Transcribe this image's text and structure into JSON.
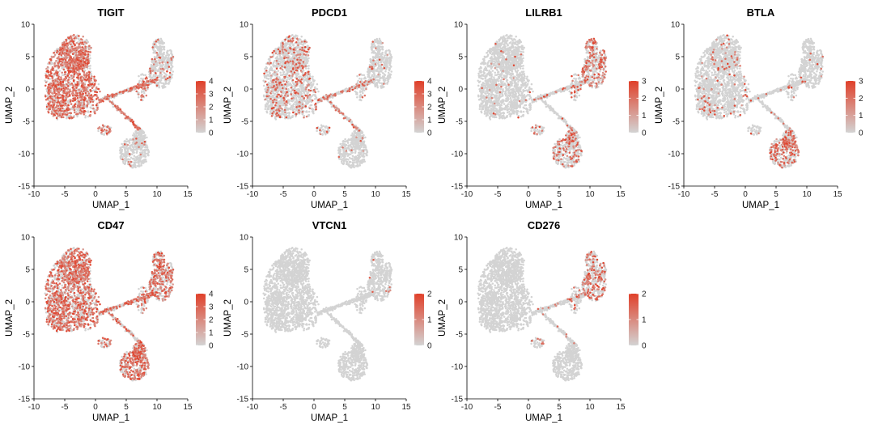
{
  "figure": {
    "xlabel": "UMAP_1",
    "ylabel": "UMAP_2"
  },
  "chart_data": [
    {
      "type": "scatter",
      "title": "TIGIT",
      "xlabel": "UMAP_1",
      "ylabel": "UMAP_2",
      "xlim": [
        -10,
        15
      ],
      "ylim": [
        -15,
        10
      ],
      "xticks": [
        -10,
        -5,
        0,
        5,
        10,
        15
      ],
      "yticks": [
        -15,
        -10,
        -5,
        0,
        5,
        10
      ],
      "colorbar": {
        "min": 0,
        "max": 4,
        "ticks": [
          0,
          1,
          2,
          3,
          4
        ],
        "low_color": "#d3d3d3",
        "high_color": "#e0402a"
      },
      "expression": {
        "main_cluster": 0.6,
        "upper_right_cluster": 0.1,
        "bridge": 0.5,
        "bottom_cluster": 0.05
      }
    },
    {
      "type": "scatter",
      "title": "PDCD1",
      "xlabel": "UMAP_1",
      "ylabel": "UMAP_2",
      "xlim": [
        -10,
        15
      ],
      "ylim": [
        -15,
        10
      ],
      "xticks": [
        -10,
        -5,
        0,
        5,
        10,
        15
      ],
      "yticks": [
        -15,
        -10,
        -5,
        0,
        5,
        10
      ],
      "colorbar": {
        "min": 0,
        "max": 4,
        "ticks": [
          0,
          1,
          2,
          3,
          4
        ],
        "low_color": "#d3d3d3",
        "high_color": "#e0402a"
      },
      "expression": {
        "main_cluster": 0.18,
        "upper_right_cluster": 0.05,
        "bridge": 0.2,
        "bottom_cluster": 0.02
      }
    },
    {
      "type": "scatter",
      "title": "LILRB1",
      "xlabel": "UMAP_1",
      "ylabel": "UMAP_2",
      "xlim": [
        -10,
        15
      ],
      "ylim": [
        -15,
        10
      ],
      "xticks": [
        -10,
        -5,
        0,
        5,
        10,
        15
      ],
      "yticks": [
        -15,
        -10,
        -5,
        0,
        5,
        10
      ],
      "colorbar": {
        "min": 0,
        "max": 3,
        "ticks": [
          0,
          1,
          2,
          3
        ],
        "low_color": "#d3d3d3",
        "high_color": "#e0402a"
      },
      "expression": {
        "main_cluster": 0.02,
        "upper_right_cluster": 0.35,
        "bridge": 0.1,
        "bottom_cluster": 0.25
      }
    },
    {
      "type": "scatter",
      "title": "BTLA",
      "xlabel": "UMAP_1",
      "ylabel": "UMAP_2",
      "xlim": [
        -10,
        15
      ],
      "ylim": [
        -15,
        10
      ],
      "xticks": [
        -10,
        -5,
        0,
        5,
        10,
        15
      ],
      "yticks": [
        -15,
        -10,
        -5,
        0,
        5,
        10
      ],
      "colorbar": {
        "min": 0,
        "max": 3,
        "ticks": [
          0,
          1,
          2,
          3
        ],
        "low_color": "#d3d3d3",
        "high_color": "#e0402a"
      },
      "expression": {
        "main_cluster": 0.06,
        "upper_right_cluster": 0.02,
        "bridge": 0.05,
        "bottom_cluster": 0.35
      }
    },
    {
      "type": "scatter",
      "title": "CD47",
      "xlabel": "UMAP_1",
      "ylabel": "UMAP_2",
      "xlim": [
        -10,
        15
      ],
      "ylim": [
        -15,
        10
      ],
      "xticks": [
        -10,
        -5,
        0,
        5,
        10,
        15
      ],
      "yticks": [
        -15,
        -10,
        -5,
        0,
        5,
        10
      ],
      "colorbar": {
        "min": 0,
        "max": 4,
        "ticks": [
          0,
          1,
          2,
          3,
          4
        ],
        "low_color": "#d3d3d3",
        "high_color": "#e0402a"
      },
      "expression": {
        "main_cluster": 0.55,
        "upper_right_cluster": 0.5,
        "bridge": 0.35,
        "bottom_cluster": 0.6
      }
    },
    {
      "type": "scatter",
      "title": "VTCN1",
      "xlabel": "UMAP_1",
      "ylabel": "UMAP_2",
      "xlim": [
        -10,
        15
      ],
      "ylim": [
        -15,
        10
      ],
      "xticks": [
        -10,
        -5,
        0,
        5,
        10,
        15
      ],
      "yticks": [
        -15,
        -10,
        -5,
        0,
        5,
        10
      ],
      "colorbar": {
        "min": 0,
        "max": 2,
        "ticks": [
          0,
          1,
          2
        ],
        "low_color": "#d3d3d3",
        "high_color": "#e0402a"
      },
      "expression": {
        "main_cluster": 0.0,
        "upper_right_cluster": 0.01,
        "bridge": 0.0,
        "bottom_cluster": 0.0
      }
    },
    {
      "type": "scatter",
      "title": "CD276",
      "xlabel": "UMAP_1",
      "ylabel": "UMAP_2",
      "xlim": [
        -10,
        15
      ],
      "ylim": [
        -15,
        10
      ],
      "xticks": [
        -10,
        -5,
        0,
        5,
        10,
        15
      ],
      "yticks": [
        -15,
        -10,
        -5,
        0,
        5,
        10
      ],
      "colorbar": {
        "min": 0,
        "max": 2,
        "ticks": [
          0,
          1,
          2
        ],
        "low_color": "#d3d3d3",
        "high_color": "#e0402a"
      },
      "expression": {
        "main_cluster": 0.0,
        "upper_right_cluster": 0.3,
        "bridge": 0.1,
        "bottom_cluster": 0.0
      }
    }
  ]
}
